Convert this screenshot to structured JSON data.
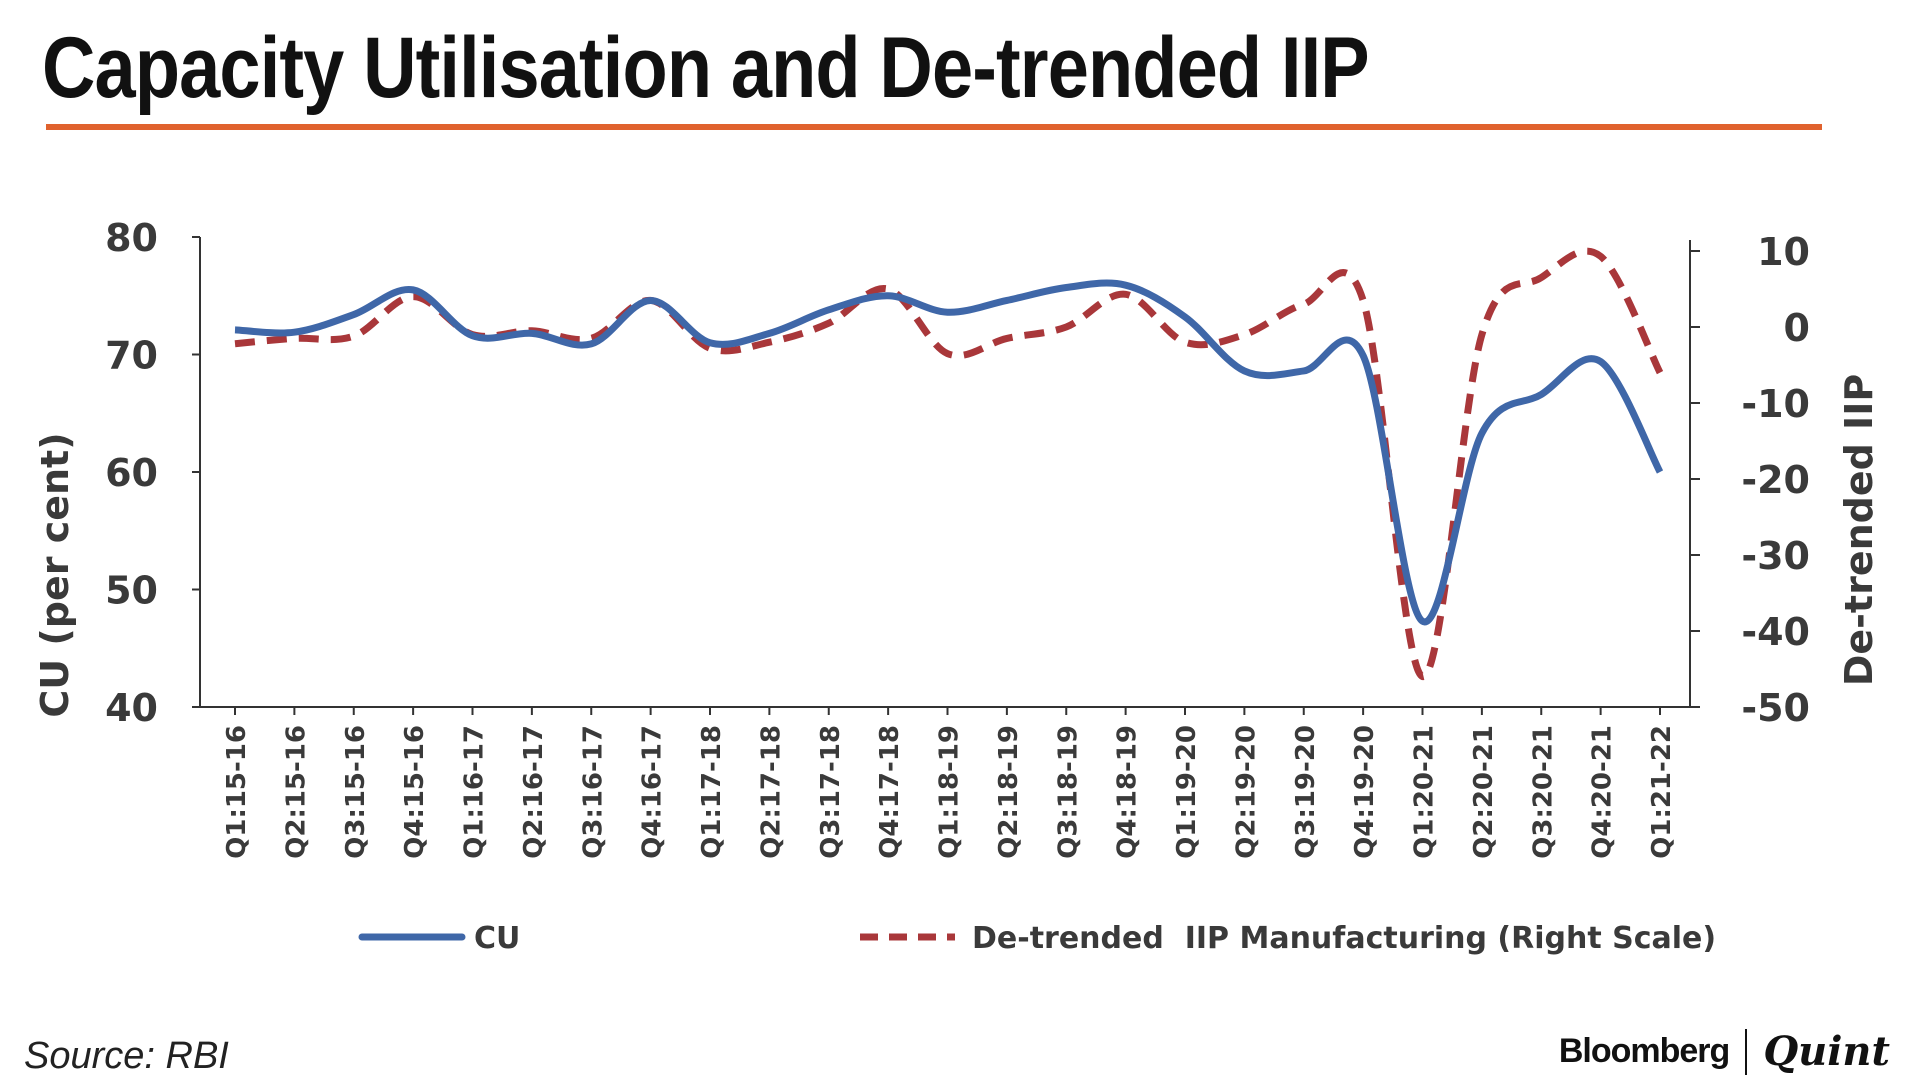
{
  "title": "Capacity Utilisation and De-trended IIP",
  "source": "Source: RBI",
  "brand": {
    "primary": "Bloomberg",
    "secondary": "Quint"
  },
  "colors": {
    "accent_rule": "#e0622e",
    "cu": "#3f67a8",
    "iip": "#a9373a",
    "axis": "#333333",
    "text": "#3a3a3a"
  },
  "chart_data": {
    "type": "line",
    "title": "Capacity Utilisation and De-trended IIP",
    "categories": [
      "Q1:15-16",
      "Q2:15-16",
      "Q3:15-16",
      "Q4:15-16",
      "Q1:16-17",
      "Q2:16-17",
      "Q3:16-17",
      "Q4:16-17",
      "Q1:17-18",
      "Q2:17-18",
      "Q3:17-18",
      "Q4:17-18",
      "Q1:18-19",
      "Q2:18-19",
      "Q3:18-19",
      "Q4:18-19",
      "Q1:19-20",
      "Q2:19-20",
      "Q3:19-20",
      "Q4:19-20",
      "Q1:20-21",
      "Q2:20-21",
      "Q3:20-21",
      "Q4:20-21",
      "Q1:21-22"
    ],
    "ylabel_left": "CU (per cent)",
    "ylabel_right": "De-trended IIP",
    "ylim_left": [
      40,
      80
    ],
    "ylim_right": [
      -50,
      10
    ],
    "yticks_left": [
      "80",
      "70",
      "60",
      "50",
      "40"
    ],
    "yticks_right": [
      "10",
      "0",
      "-10",
      "-20",
      "-30",
      "-40",
      "-50"
    ],
    "series": [
      {
        "name": "CU",
        "axis": "left",
        "style": "solid",
        "values": [
          72.1,
          71.9,
          73.4,
          75.5,
          71.6,
          71.8,
          70.9,
          74.6,
          71.0,
          71.8,
          73.8,
          75.0,
          73.6,
          74.6,
          75.7,
          75.9,
          73.2,
          68.6,
          68.6,
          69.9,
          47.3,
          63.3,
          66.6,
          69.4,
          60.0
        ]
      },
      {
        "name": "De-trended  IIP Manufacturing (Right Scale)",
        "axis": "right",
        "style": "dashed",
        "values": [
          -2.2,
          -1.5,
          -1.2,
          4.0,
          -1.0,
          -0.5,
          -1.5,
          3.5,
          -2.8,
          -2.0,
          0.5,
          5.0,
          -3.5,
          -1.5,
          0.0,
          4.3,
          -2.0,
          -1.0,
          3.0,
          3.5,
          -46.0,
          -1.0,
          6.5,
          9.3,
          -6.0
        ]
      }
    ],
    "legend": "bottom"
  }
}
